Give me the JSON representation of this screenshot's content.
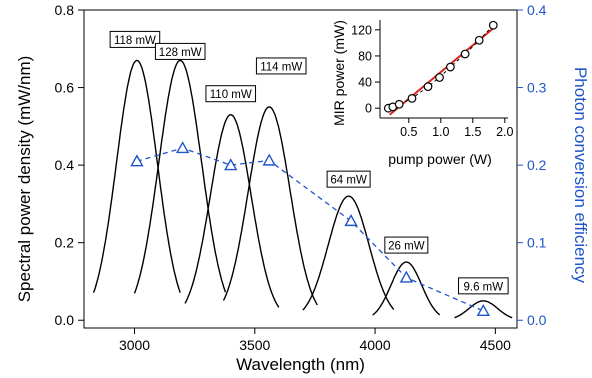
{
  "chart_data": [
    {
      "type": "line",
      "xlabel": "Wavelength (nm)",
      "ylabel": "Spectral power density (mW/nm)",
      "y2label": "Photon conversion efficiency",
      "xlim": [
        2790,
        4590
      ],
      "ylim": [
        -0.02,
        0.8
      ],
      "y2lim": [
        -0.01,
        0.4
      ],
      "xticks": [
        3000,
        3500,
        4000,
        4500
      ],
      "yticks": [
        0.0,
        0.2,
        0.4,
        0.6,
        0.8
      ],
      "y2ticks": [
        0.0,
        0.1,
        0.2,
        0.3,
        0.4
      ],
      "grid": false,
      "line_color": "#000000",
      "efficiency_color": "#1f55c8",
      "series": [
        {
          "label": "118 mW",
          "center": 3010,
          "peak": 0.67,
          "fwhm": 200,
          "from": 2830,
          "to": 3190
        },
        {
          "label": "128 mW",
          "center": 3190,
          "peak": 0.67,
          "fwhm": 210,
          "from": 3000,
          "to": 3380
        },
        {
          "label": "110 mW",
          "center": 3400,
          "peak": 0.53,
          "fwhm": 200,
          "from": 3210,
          "to": 3600
        },
        {
          "label": "114 mW",
          "center": 3560,
          "peak": 0.55,
          "fwhm": 205,
          "from": 3370,
          "to": 3760
        },
        {
          "label": "64 mW",
          "center": 3890,
          "peak": 0.32,
          "fwhm": 200,
          "from": 3700,
          "to": 4080
        },
        {
          "label": "26 mW",
          "center": 4130,
          "peak": 0.15,
          "fwhm": 150,
          "from": 3990,
          "to": 4270
        },
        {
          "label": "9.6 mW",
          "center": 4450,
          "peak": 0.05,
          "fwhm": 140,
          "from": 4330,
          "to": 4570
        }
      ],
      "efficiency": [
        {
          "x": 3010,
          "y": 0.205
        },
        {
          "x": 3200,
          "y": 0.222
        },
        {
          "x": 3400,
          "y": 0.2
        },
        {
          "x": 3560,
          "y": 0.206
        },
        {
          "x": 3900,
          "y": 0.128
        },
        {
          "x": 4130,
          "y": 0.055
        },
        {
          "x": 4450,
          "y": 0.012
        }
      ]
    },
    {
      "type": "scatter",
      "xlabel": "pump power (W)",
      "ylabel": "MIR power (mW)",
      "xlim": [
        0.05,
        2.05
      ],
      "ylim": [
        -15,
        135
      ],
      "xticks": [
        0.5,
        1.0,
        1.5,
        2.0
      ],
      "yticks": [
        0,
        40,
        80,
        120
      ],
      "grid": false,
      "points": [
        {
          "x": 0.18,
          "y": 0
        },
        {
          "x": 0.25,
          "y": 2
        },
        {
          "x": 0.35,
          "y": 6
        },
        {
          "x": 0.55,
          "y": 15
        },
        {
          "x": 0.8,
          "y": 33
        },
        {
          "x": 0.98,
          "y": 47
        },
        {
          "x": 1.15,
          "y": 63
        },
        {
          "x": 1.38,
          "y": 83
        },
        {
          "x": 1.6,
          "y": 104
        },
        {
          "x": 1.82,
          "y": 127
        }
      ],
      "fit": {
        "x": [
          0.2,
          1.84
        ],
        "y": [
          -10,
          124
        ],
        "color": "#d9261c"
      }
    }
  ]
}
